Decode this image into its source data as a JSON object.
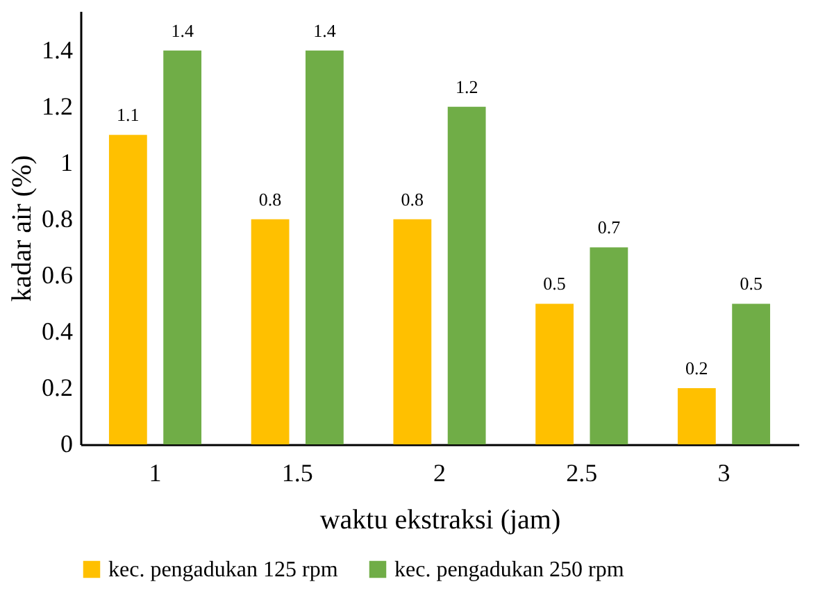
{
  "chart_data": {
    "type": "bar",
    "xlabel": "waktu ekstraksi (jam)",
    "ylabel": "kadar air (%)",
    "categories": [
      "1",
      "1.5",
      "2",
      "2.5",
      "3"
    ],
    "series": [
      {
        "name": "kec. pengadukan 125 rpm",
        "color": "#ffc000",
        "values": [
          1.1,
          0.8,
          0.8,
          0.5,
          0.2
        ]
      },
      {
        "name": "kec. pengadukan 250 rpm",
        "color": "#70ad47",
        "values": [
          1.4,
          1.4,
          1.2,
          0.7,
          0.5
        ]
      }
    ],
    "ylim": [
      0,
      1.54
    ],
    "yticks": [
      0,
      0.2,
      0.4,
      0.6,
      0.8,
      1,
      1.2,
      1.4
    ],
    "data_labels": true,
    "grid": false,
    "legend": "bottom"
  }
}
